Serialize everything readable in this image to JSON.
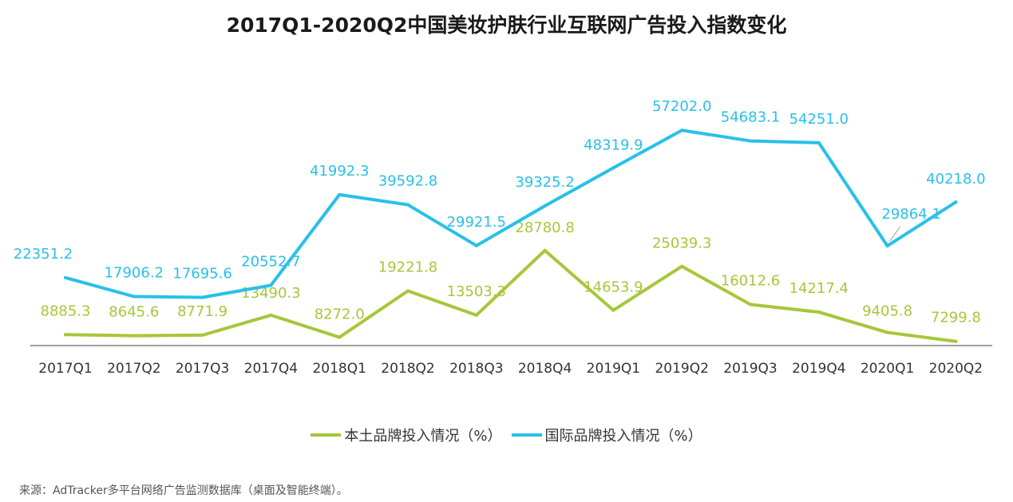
{
  "chart_data": {
    "type": "line",
    "title": "2017Q1-2020Q2中国美妆护肤行业互联网广告投入指数变化",
    "categories": [
      "2017Q1",
      "2017Q2",
      "2017Q3",
      "2017Q4",
      "2018Q1",
      "2018Q2",
      "2018Q3",
      "2018Q4",
      "2019Q1",
      "2019Q2",
      "2019Q3",
      "2019Q4",
      "2020Q1",
      "2020Q2"
    ],
    "series": [
      {
        "name": "本土品牌投入情况（%）",
        "color": "#a6c73a",
        "values": [
          8885.3,
          8645.6,
          8771.9,
          13490.3,
          8272.0,
          19221.8,
          13503.3,
          28780.8,
          14653.9,
          25039.3,
          16012.6,
          14217.4,
          9405.8,
          7299.8
        ],
        "labels": [
          "8885.3",
          "8645.6",
          "8771.9",
          "13490.3",
          "8272.0",
          "19221.8",
          "13503.3",
          "28780.8",
          "14653.9",
          "25039.3",
          "16012.6",
          "14217.4",
          "9405.8",
          "7299.8"
        ]
      },
      {
        "name": "国际品牌投入情况（%）",
        "color": "#29c0e8",
        "values": [
          22351.2,
          17906.2,
          17695.6,
          20552.7,
          41992.3,
          39592.8,
          29921.5,
          39325.2,
          48319.9,
          57202.0,
          54683.1,
          54251.0,
          29864.1,
          40218.0
        ],
        "labels": [
          "22351.2",
          "17906.2",
          "17695.6",
          "20552.7",
          "41992.3",
          "39592.8",
          "29921.5",
          "39325.2",
          "48319.9",
          "57202.0",
          "54683.1",
          "54251.0",
          "29864.1",
          "40218.0"
        ]
      }
    ],
    "xlabel": "",
    "ylabel": "",
    "grid": false,
    "legend": "bottom-center"
  },
  "source": "来源：AdTracker多平台网络广告监测数据库（桌面及智能终端）。"
}
